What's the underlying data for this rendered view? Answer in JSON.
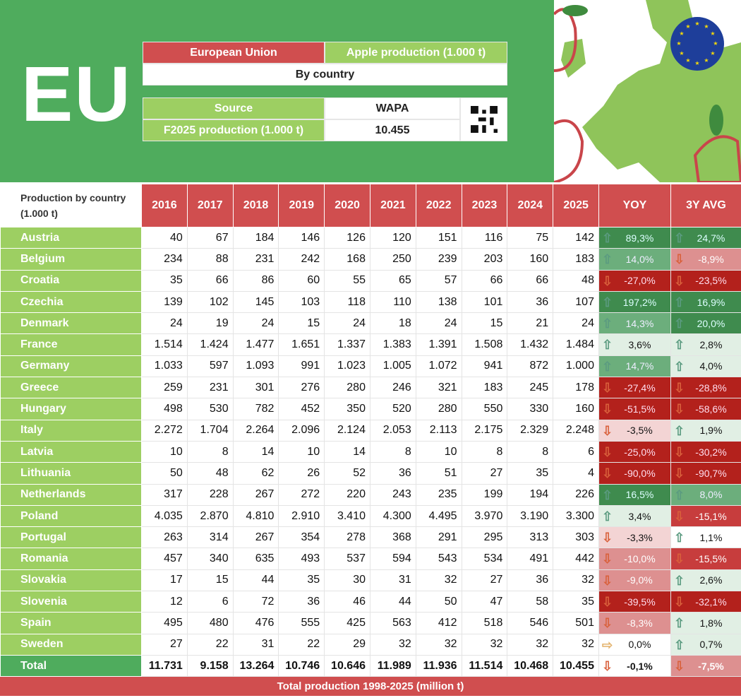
{
  "header": {
    "big_title": "EU",
    "region": "European Union",
    "topic": "Apple production (1.000 t)",
    "subtitle": "By country",
    "source_label": "Source",
    "source_value": "WAPA",
    "forecast_label": "F2025 production (1.000 t)",
    "forecast_value": "10.455"
  },
  "table": {
    "corner_label": "Production by country (1.000 t)",
    "years": [
      "2016",
      "2017",
      "2018",
      "2019",
      "2020",
      "2021",
      "2022",
      "2023",
      "2024",
      "2025"
    ],
    "yoy_label": "YOY",
    "avg_label": "3Y AVG",
    "rows": [
      {
        "country": "Austria",
        "values": [
          "40",
          "67",
          "184",
          "146",
          "126",
          "120",
          "151",
          "116",
          "75",
          "142"
        ],
        "yoy": "89,3%",
        "yoy_dir": "up",
        "yoy_tone": "g3",
        "avg": "24,7%",
        "avg_dir": "up",
        "avg_tone": "g3"
      },
      {
        "country": "Belgium",
        "values": [
          "234",
          "88",
          "231",
          "242",
          "168",
          "250",
          "239",
          "203",
          "160",
          "183"
        ],
        "yoy": "14,0%",
        "yoy_dir": "up",
        "yoy_tone": "g2",
        "avg": "-8,9%",
        "avg_dir": "down",
        "avg_tone": "r2"
      },
      {
        "country": "Croatia",
        "values": [
          "35",
          "66",
          "86",
          "60",
          "55",
          "65",
          "57",
          "66",
          "66",
          "48"
        ],
        "yoy": "-27,0%",
        "yoy_dir": "down",
        "yoy_tone": "r4",
        "avg": "-23,5%",
        "avg_dir": "down",
        "avg_tone": "r4"
      },
      {
        "country": "Czechia",
        "values": [
          "139",
          "102",
          "145",
          "103",
          "118",
          "110",
          "138",
          "101",
          "36",
          "107"
        ],
        "yoy": "197,2%",
        "yoy_dir": "up",
        "yoy_tone": "g3",
        "avg": "16,9%",
        "avg_dir": "up",
        "avg_tone": "g3"
      },
      {
        "country": "Denmark",
        "values": [
          "24",
          "19",
          "24",
          "15",
          "24",
          "18",
          "24",
          "15",
          "21",
          "24"
        ],
        "yoy": "14,3%",
        "yoy_dir": "up",
        "yoy_tone": "g2",
        "avg": "20,0%",
        "avg_dir": "up",
        "avg_tone": "g3"
      },
      {
        "country": "France",
        "values": [
          "1.514",
          "1.424",
          "1.477",
          "1.651",
          "1.337",
          "1.383",
          "1.391",
          "1.508",
          "1.432",
          "1.484"
        ],
        "yoy": "3,6%",
        "yoy_dir": "up",
        "yoy_tone": "g1",
        "avg": "2,8%",
        "avg_dir": "up",
        "avg_tone": "g1"
      },
      {
        "country": "Germany",
        "values": [
          "1.033",
          "597",
          "1.093",
          "991",
          "1.023",
          "1.005",
          "1.072",
          "941",
          "872",
          "1.000"
        ],
        "yoy": "14,7%",
        "yoy_dir": "up",
        "yoy_tone": "g2",
        "avg": "4,0%",
        "avg_dir": "up",
        "avg_tone": "g1"
      },
      {
        "country": "Greece",
        "values": [
          "259",
          "231",
          "301",
          "276",
          "280",
          "246",
          "321",
          "183",
          "245",
          "178"
        ],
        "yoy": "-27,4%",
        "yoy_dir": "down",
        "yoy_tone": "r4",
        "avg": "-28,8%",
        "avg_dir": "down",
        "avg_tone": "r4"
      },
      {
        "country": "Hungary",
        "values": [
          "498",
          "530",
          "782",
          "452",
          "350",
          "520",
          "280",
          "550",
          "330",
          "160"
        ],
        "yoy": "-51,5%",
        "yoy_dir": "down",
        "yoy_tone": "r4",
        "avg": "-58,6%",
        "avg_dir": "down",
        "avg_tone": "r4"
      },
      {
        "country": "Italy",
        "values": [
          "2.272",
          "1.704",
          "2.264",
          "2.096",
          "2.124",
          "2.053",
          "2.113",
          "2.175",
          "2.329",
          "2.248"
        ],
        "yoy": "-3,5%",
        "yoy_dir": "down",
        "yoy_tone": "r1",
        "avg": "1,9%",
        "avg_dir": "up",
        "avg_tone": "g1"
      },
      {
        "country": "Latvia",
        "values": [
          "10",
          "8",
          "14",
          "10",
          "14",
          "8",
          "10",
          "8",
          "8",
          "6"
        ],
        "yoy": "-25,0%",
        "yoy_dir": "down",
        "yoy_tone": "r4",
        "avg": "-30,2%",
        "avg_dir": "down",
        "avg_tone": "r4"
      },
      {
        "country": "Lithuania",
        "values": [
          "50",
          "48",
          "62",
          "26",
          "52",
          "36",
          "51",
          "27",
          "35",
          "4"
        ],
        "yoy": "-90,0%",
        "yoy_dir": "down",
        "yoy_tone": "r4",
        "avg": "-90,7%",
        "avg_dir": "down",
        "avg_tone": "r4"
      },
      {
        "country": "Netherlands",
        "values": [
          "317",
          "228",
          "267",
          "272",
          "220",
          "243",
          "235",
          "199",
          "194",
          "226"
        ],
        "yoy": "16,5%",
        "yoy_dir": "up",
        "yoy_tone": "g3",
        "avg": "8,0%",
        "avg_dir": "up",
        "avg_tone": "g2"
      },
      {
        "country": "Poland",
        "values": [
          "4.035",
          "2.870",
          "4.810",
          "2.910",
          "3.410",
          "4.300",
          "4.495",
          "3.970",
          "3.190",
          "3.300"
        ],
        "yoy": "3,4%",
        "yoy_dir": "up",
        "yoy_tone": "g1",
        "avg": "-15,1%",
        "avg_dir": "down",
        "avg_tone": "r3"
      },
      {
        "country": "Portugal",
        "values": [
          "263",
          "314",
          "267",
          "354",
          "278",
          "368",
          "291",
          "295",
          "313",
          "303"
        ],
        "yoy": "-3,3%",
        "yoy_dir": "down",
        "yoy_tone": "r1",
        "avg": "1,1%",
        "avg_dir": "up",
        "avg_tone": "w"
      },
      {
        "country": "Romania",
        "values": [
          "457",
          "340",
          "635",
          "493",
          "537",
          "594",
          "543",
          "534",
          "491",
          "442"
        ],
        "yoy": "-10,0%",
        "yoy_dir": "down",
        "yoy_tone": "r2",
        "avg": "-15,5%",
        "avg_dir": "down",
        "avg_tone": "r3"
      },
      {
        "country": "Slovakia",
        "values": [
          "17",
          "15",
          "44",
          "35",
          "30",
          "31",
          "32",
          "27",
          "36",
          "32"
        ],
        "yoy": "-9,0%",
        "yoy_dir": "down",
        "yoy_tone": "r2",
        "avg": "2,6%",
        "avg_dir": "up",
        "avg_tone": "g1"
      },
      {
        "country": "Slovenia",
        "values": [
          "12",
          "6",
          "72",
          "36",
          "46",
          "44",
          "50",
          "47",
          "58",
          "35"
        ],
        "yoy": "-39,5%",
        "yoy_dir": "down",
        "yoy_tone": "r4",
        "avg": "-32,1%",
        "avg_dir": "down",
        "avg_tone": "r4"
      },
      {
        "country": "Spain",
        "values": [
          "495",
          "480",
          "476",
          "555",
          "425",
          "563",
          "412",
          "518",
          "546",
          "501"
        ],
        "yoy": "-8,3%",
        "yoy_dir": "down",
        "yoy_tone": "r2",
        "avg": "1,8%",
        "avg_dir": "up",
        "avg_tone": "g1"
      },
      {
        "country": "Sweden",
        "values": [
          "27",
          "22",
          "31",
          "22",
          "29",
          "32",
          "32",
          "32",
          "32",
          "32"
        ],
        "yoy": "0,0%",
        "yoy_dir": "right",
        "yoy_tone": "w",
        "avg": "0,7%",
        "avg_dir": "up",
        "avg_tone": "g1"
      },
      {
        "country": "Total",
        "values": [
          "11.731",
          "9.158",
          "13.264",
          "10.746",
          "10.646",
          "11.989",
          "11.936",
          "11.514",
          "10.468",
          "10.455"
        ],
        "yoy": "-0,1%",
        "yoy_dir": "down",
        "yoy_tone": "w",
        "avg": "-7,5%",
        "avg_dir": "down",
        "avg_tone": "r2"
      }
    ]
  },
  "footer": {
    "label": "Total production 1998-2025 (million t)"
  }
}
